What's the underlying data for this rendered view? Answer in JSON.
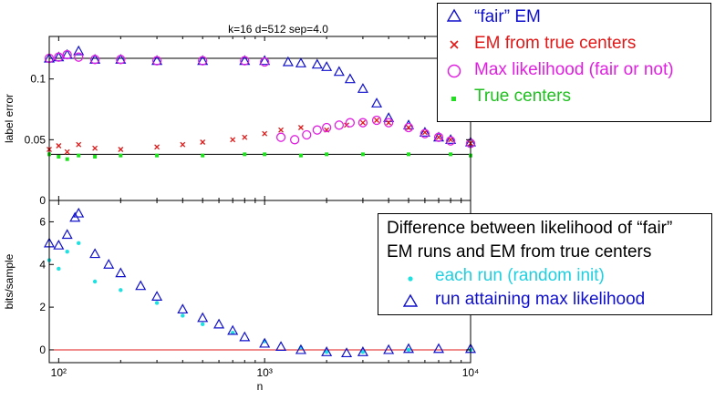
{
  "chart_data": [
    {
      "type": "scatter",
      "title": "k=16 d=512 sep=4.0",
      "xlabel": "",
      "ylabel": "label error",
      "xscale": "log",
      "xlim": [
        90,
        10000
      ],
      "ylim": [
        0,
        0.135
      ],
      "yticks": [
        0,
        0.05,
        0.1
      ],
      "ytick_labels": [
        "0",
        "0.05",
        "0.1"
      ],
      "hlines": [
        0.117,
        0.038
      ],
      "legend_position": "top-right, outside",
      "series": [
        {
          "name": "“fair” EM",
          "color": "#1010cc",
          "marker": "triangle",
          "x": [
            90,
            100,
            110,
            125,
            150,
            200,
            300,
            500,
            800,
            1000,
            1300,
            1500,
            1800,
            2000,
            2300,
            2600,
            3000,
            3500,
            4000,
            5000,
            6000,
            7000,
            8000,
            10000
          ],
          "y": [
            0.117,
            0.118,
            0.12,
            0.123,
            0.116,
            0.116,
            0.115,
            0.115,
            0.115,
            0.115,
            0.114,
            0.113,
            0.112,
            0.11,
            0.106,
            0.1,
            0.092,
            0.08,
            0.068,
            0.062,
            0.056,
            0.052,
            0.05,
            0.048
          ]
        },
        {
          "name": "EM from true centers",
          "color": "#e01818",
          "marker": "x",
          "x": [
            90,
            100,
            110,
            125,
            150,
            200,
            300,
            400,
            500,
            700,
            800,
            1000,
            1200,
            1500,
            2000,
            2500,
            3000,
            3500,
            4000,
            5000,
            6000,
            7000,
            8000,
            10000
          ],
          "y": [
            0.042,
            0.045,
            0.04,
            0.046,
            0.043,
            0.042,
            0.044,
            0.046,
            0.048,
            0.05,
            0.052,
            0.055,
            0.058,
            0.06,
            0.058,
            0.062,
            0.064,
            0.066,
            0.064,
            0.06,
            0.056,
            0.052,
            0.05,
            0.047
          ]
        },
        {
          "name": "Max likelihood (fair or not)",
          "color": "#e020e0",
          "marker": "circle",
          "x": [
            90,
            100,
            110,
            125,
            150,
            200,
            300,
            500,
            800,
            1000,
            1200,
            1400,
            1600,
            1800,
            2000,
            2300,
            2600,
            3000,
            3500,
            4000,
            5000,
            6000,
            7000,
            8000,
            10000
          ],
          "y": [
            0.117,
            0.118,
            0.12,
            0.118,
            0.116,
            0.116,
            0.115,
            0.115,
            0.115,
            0.114,
            0.052,
            0.05,
            0.054,
            0.058,
            0.06,
            0.062,
            0.064,
            0.064,
            0.066,
            0.064,
            0.06,
            0.055,
            0.052,
            0.049,
            0.047
          ]
        },
        {
          "name": "True centers",
          "color": "#20e020",
          "marker": "square",
          "x": [
            90,
            100,
            110,
            125,
            150,
            200,
            300,
            500,
            800,
            1000,
            1500,
            2000,
            3000,
            5000,
            8000,
            10000
          ],
          "y": [
            0.038,
            0.036,
            0.034,
            0.037,
            0.036,
            0.037,
            0.037,
            0.037,
            0.038,
            0.038,
            0.037,
            0.038,
            0.038,
            0.038,
            0.038,
            0.037
          ]
        }
      ]
    },
    {
      "type": "scatter",
      "xlabel": "n",
      "ylabel": "bits/sample",
      "xscale": "log",
      "xlim": [
        90,
        10000
      ],
      "ylim": [
        -0.6,
        7.0
      ],
      "xticks": [
        100,
        1000,
        10000
      ],
      "xtick_labels": [
        "10²",
        "10³",
        "10⁴"
      ],
      "yticks": [
        0,
        2,
        4,
        6
      ],
      "ytick_labels": [
        "0",
        "2",
        "4",
        "6"
      ],
      "hlines": [
        0
      ],
      "legend_position": "right, inside",
      "legend_title": [
        "Difference between likelihood of “fair”",
        "EM runs and EM from true centers"
      ],
      "series": [
        {
          "name": "each run (random init)",
          "color": "#20e0e0",
          "marker": "dot",
          "x": [
            90,
            100,
            110,
            125,
            150,
            200,
            300,
            400,
            500,
            700,
            1000,
            1500,
            2000,
            3000,
            5000,
            10000
          ],
          "y": [
            4.2,
            3.8,
            4.6,
            5.0,
            3.2,
            2.8,
            2.2,
            1.6,
            1.2,
            0.8,
            0.4,
            0.1,
            -0.1,
            -0.1,
            0.0,
            0.0
          ]
        },
        {
          "name": "run attaining max likelihood",
          "color": "#1010cc",
          "marker": "triangle",
          "x": [
            90,
            100,
            110,
            120,
            125,
            150,
            175,
            200,
            250,
            300,
            400,
            500,
            600,
            700,
            800,
            1000,
            1200,
            1500,
            2000,
            2500,
            3000,
            4000,
            5000,
            7000,
            10000
          ],
          "y": [
            5.0,
            4.9,
            5.4,
            6.2,
            6.4,
            4.5,
            4.0,
            3.6,
            3.0,
            2.5,
            1.9,
            1.5,
            1.2,
            0.9,
            0.6,
            0.3,
            0.15,
            0.0,
            -0.1,
            -0.15,
            -0.1,
            0.0,
            0.05,
            0.05,
            0.05
          ]
        }
      ]
    }
  ]
}
